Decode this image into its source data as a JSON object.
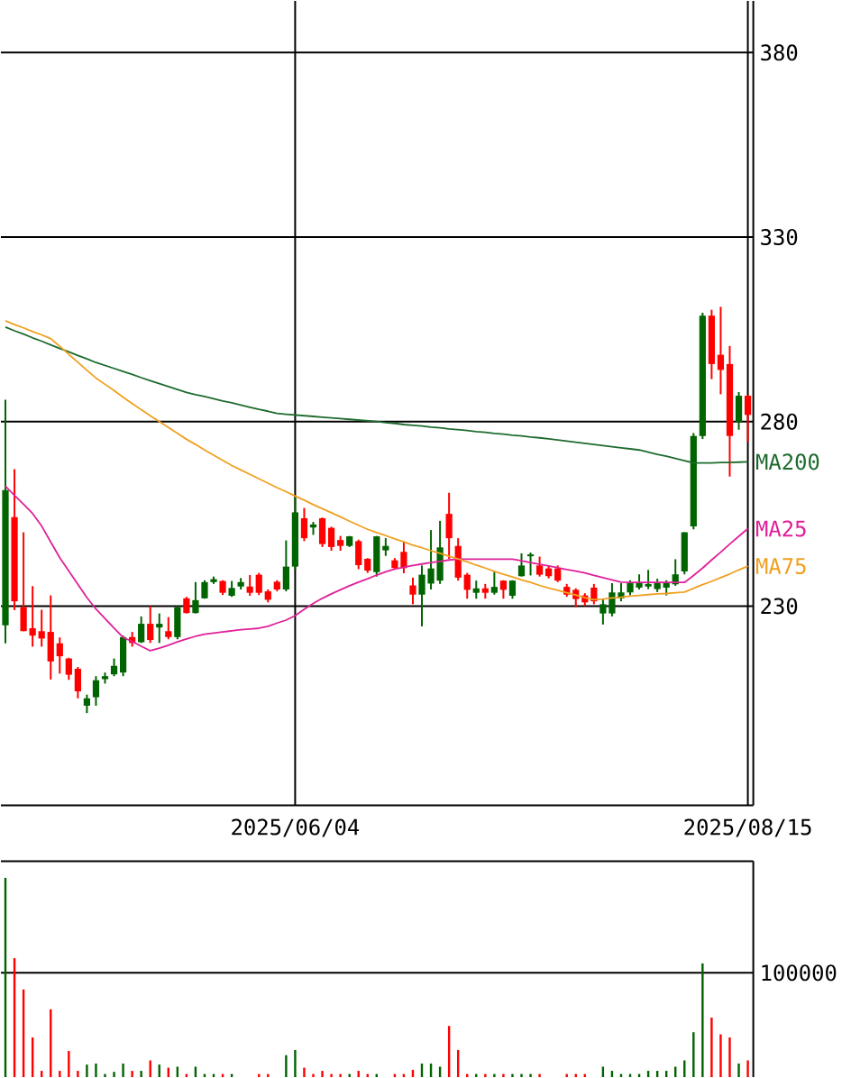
{
  "chart_data": [
    {
      "type": "candlestick",
      "categories": [
        null,
        null,
        null,
        null,
        null,
        null,
        null,
        null,
        null,
        null,
        null,
        null,
        null,
        null,
        null,
        null,
        null,
        null,
        null,
        null,
        null,
        null,
        null,
        null,
        null,
        null,
        null,
        null,
        null,
        null,
        null,
        null,
        "2025/06/04",
        null,
        null,
        null,
        null,
        null,
        null,
        null,
        null,
        null,
        null,
        null,
        null,
        null,
        null,
        null,
        null,
        null,
        null,
        null,
        null,
        null,
        null,
        null,
        null,
        null,
        null,
        null,
        null,
        null,
        null,
        null,
        null,
        null,
        null,
        null,
        null,
        null,
        null,
        null,
        null,
        null,
        null,
        null,
        null,
        null,
        null,
        null,
        null,
        null,
        "2025/08/15"
      ],
      "series": [
        {
          "type": "candlestick",
          "ohlc": [
            [
              224.8,
              285.9,
              219.9,
              261.4
            ],
            [
              254.1,
              267.1,
              228.9,
              231.3
            ],
            [
              229.7,
              250.0,
              223.2,
              223.2
            ],
            [
              224.0,
              235.4,
              219.0,
              222.0
            ],
            [
              223.2,
              229.0,
              219.0,
              221.2
            ],
            [
              223.0,
              232.9,
              210.1,
              215.0
            ],
            [
              219.9,
              221.5,
              211.7,
              216.4
            ],
            [
              215.8,
              216.0,
              210.0,
              211.4
            ],
            [
              213.0,
              213.5,
              205.0,
              206.9
            ],
            [
              203.0,
              206.0,
              201.0,
              205.0
            ],
            [
              205.3,
              211.0,
              203.0,
              209.9
            ],
            [
              210.2,
              212.0,
              209.0,
              211.0
            ],
            [
              211.5,
              215.8,
              211.0,
              213.8
            ],
            [
              212.0,
              222.0,
              211.0,
              221.6
            ],
            [
              221.6,
              223.0,
              219.0,
              220.0
            ],
            [
              220.2,
              227.2,
              220.0,
              225.2
            ],
            [
              225.2,
              230.0,
              220.0,
              220.8
            ],
            [
              224.2,
              228.0,
              220.0,
              225.2
            ],
            [
              223.2,
              227.0,
              221.0,
              221.6
            ],
            [
              221.6,
              230.0,
              221.0,
              229.7
            ],
            [
              232.1,
              232.5,
              228.0,
              228.1
            ],
            [
              228.1,
              236.5,
              228.0,
              231.6
            ],
            [
              232.1,
              237.0,
              232.0,
              236.5
            ],
            [
              236.5,
              238.0,
              236.0,
              237.3
            ],
            [
              236.8,
              237.0,
              233.0,
              233.6
            ],
            [
              232.8,
              236.8,
              232.5,
              234.9
            ],
            [
              235.3,
              237.6,
              234.5,
              236.5
            ],
            [
              235.3,
              238.4,
              232.8,
              233.6
            ],
            [
              238.5,
              239.0,
              233.0,
              233.6
            ],
            [
              234.0,
              234.5,
              231.0,
              231.7
            ],
            [
              236.6,
              237.0,
              234.0,
              234.5
            ],
            [
              234.5,
              247.8,
              234.0,
              240.7
            ],
            [
              240.7,
              259.8,
              240.0,
              255.4
            ],
            [
              253.8,
              256.6,
              247.6,
              248.4
            ],
            [
              251.3,
              252.8,
              249.3,
              252.1
            ],
            [
              253.8,
              254.0,
              246.0,
              246.8
            ],
            [
              251.2,
              251.5,
              245.0,
              246.0
            ],
            [
              247.9,
              249.0,
              245.0,
              246.3
            ],
            [
              246.3,
              249.0,
              246.0,
              248.9
            ],
            [
              247.6,
              248.0,
              240.0,
              241.1
            ],
            [
              242.8,
              243.0,
              239.0,
              239.6
            ],
            [
              239.2,
              249.0,
              238.0,
              248.9
            ],
            [
              245.1,
              248.4,
              243.6,
              246.3
            ],
            [
              242.4,
              243.0,
              240.0,
              240.3
            ],
            [
              244.7,
              247.5,
              238.9,
              240.3
            ],
            [
              235.6,
              237.7,
              230.5,
              233.1
            ],
            [
              233.1,
              241.0,
              224.5,
              238.5
            ],
            [
              236.1,
              250.6,
              234.5,
              240.2
            ],
            [
              236.9,
              253.1,
              236.0,
              245.9
            ],
            [
              255.0,
              260.7,
              242.8,
              248.4
            ],
            [
              246.3,
              248.4,
              236.9,
              237.7
            ],
            [
              238.5,
              239.0,
              232.0,
              234.4
            ],
            [
              233.6,
              236.9,
              232.0,
              234.8
            ],
            [
              234.8,
              236.0,
              232.0,
              233.6
            ],
            [
              233.6,
              239.3,
              233.1,
              235.2
            ],
            [
              236.9,
              237.0,
              232.0,
              234.4
            ],
            [
              232.8,
              237.0,
              232.0,
              236.9
            ],
            [
              238.1,
              244.3,
              238.0,
              241.0
            ],
            [
              243.5,
              244.5,
              238.3,
              244.0
            ],
            [
              241.0,
              243.4,
              238.0,
              238.5
            ],
            [
              240.2,
              241.0,
              237.5,
              238.1
            ],
            [
              240.2,
              241.0,
              236.5,
              236.9
            ],
            [
              235.2,
              236.0,
              232.5,
              233.1
            ],
            [
              234.4,
              234.8,
              229.7,
              231.9
            ],
            [
              232.9,
              233.5,
              230.0,
              231.0
            ],
            [
              235.0,
              236.0,
              230.5,
              231.3
            ],
            [
              228.0,
              232.0,
              225.0,
              230.5
            ],
            [
              228.0,
              236.2,
              227.2,
              233.7
            ],
            [
              232.1,
              236.2,
              231.3,
              233.7
            ],
            [
              233.7,
              237.0,
              232.9,
              236.2
            ],
            [
              235.0,
              238.6,
              234.5,
              236.2
            ],
            [
              235.3,
              239.8,
              234.6,
              236.0
            ],
            [
              234.6,
              237.4,
              233.8,
              236.2
            ],
            [
              235.0,
              237.0,
              232.9,
              236.2
            ],
            [
              235.9,
              242.7,
              235.5,
              238.6
            ],
            [
              239.4,
              250.0,
              238.6,
              250.0
            ],
            [
              251.6,
              276.9,
              250.8,
              276.1
            ],
            [
              276.1,
              309.5,
              275.3,
              308.7
            ],
            [
              308.7,
              310.3,
              291.5,
              295.6
            ],
            [
              298.1,
              311.1,
              287.4,
              294.0
            ],
            [
              295.6,
              300.5,
              265.1,
              276.1
            ],
            [
              279.9,
              288.0,
              277.8,
              287.0
            ],
            [
              287.0,
              287.2,
              274.5,
              281.8
            ]
          ],
          "colors": [
            "#006400",
            "#ff0000",
            "#ff0000",
            "#ff0000",
            "#ff0000",
            "#ff0000",
            "#ff0000",
            "#ff0000",
            "#ff0000",
            "#006400",
            "#006400",
            "#006400",
            "#006400",
            "#006400",
            "#ff0000",
            "#006400",
            "#ff0000",
            "#006400",
            "#ff0000",
            "#006400",
            "#ff0000",
            "#006400",
            "#006400",
            "#006400",
            "#ff0000",
            "#006400",
            "#006400",
            "#ff0000",
            "#ff0000",
            "#ff0000",
            "#ff0000",
            "#006400",
            "#006400",
            "#ff0000",
            "#006400",
            "#ff0000",
            "#ff0000",
            "#ff0000",
            "#006400",
            "#ff0000",
            "#ff0000",
            "#006400",
            "#006400",
            "#ff0000",
            "#ff0000",
            "#ff0000",
            "#006400",
            "#006400",
            "#006400",
            "#ff0000",
            "#ff0000",
            "#ff0000",
            "#006400",
            "#ff0000",
            "#006400",
            "#ff0000",
            "#006400",
            "#006400",
            "#006400",
            "#ff0000",
            "#ff0000",
            "#ff0000",
            "#ff0000",
            "#ff0000",
            "#ff0000",
            "#ff0000",
            "#006400",
            "#006400",
            "#006400",
            "#006400",
            "#006400",
            "#006400",
            "#006400",
            "#006400",
            "#006400",
            "#006400",
            "#006400",
            "#006400",
            "#ff0000",
            "#ff0000",
            "#ff0000",
            "#006400",
            "#ff0000"
          ]
        },
        {
          "type": "line",
          "name": "MA200",
          "color": "#1e6b2e",
          "values": [
            305.6,
            304.6,
            303.7,
            302.7,
            301.8,
            300.8,
            299.8,
            298.9,
            297.9,
            297.0,
            296.0,
            295.2,
            294.4,
            293.6,
            292.8,
            291.9,
            291.1,
            290.3,
            289.5,
            288.7,
            287.9,
            287.3,
            286.8,
            286.2,
            285.6,
            285.1,
            284.5,
            283.9,
            283.3,
            282.8,
            282.2,
            282.0,
            281.8,
            281.6,
            281.4,
            281.2,
            281.0,
            280.8,
            280.6,
            280.4,
            280.2,
            280.0,
            279.7,
            279.5,
            279.2,
            279.0,
            278.8,
            278.5,
            278.3,
            278.0,
            277.8,
            277.6,
            277.3,
            277.1,
            276.8,
            276.6,
            276.3,
            276.1,
            275.8,
            275.6,
            275.3,
            275.0,
            274.7,
            274.4,
            274.1,
            273.8,
            273.5,
            273.2,
            272.9,
            272.6,
            272.3,
            271.7,
            271.1,
            270.6,
            270.0,
            269.4,
            268.8,
            268.8,
            268.8,
            268.9,
            268.9,
            269.0,
            269.1
          ]
        },
        {
          "type": "line",
          "name": "MA25",
          "color": "#e0209a",
          "values": [
            262.5,
            260.0,
            257.6,
            255.1,
            251.7,
            247.4,
            243.1,
            239.5,
            235.9,
            232.3,
            229.2,
            226.6,
            224.0,
            221.5,
            220.4,
            219.1,
            217.9,
            218.6,
            219.4,
            220.3,
            221.1,
            221.8,
            222.4,
            222.7,
            223.0,
            223.3,
            223.6,
            223.8,
            224.0,
            224.5,
            225.4,
            226.2,
            227.4,
            229.1,
            230.7,
            232.1,
            233.3,
            234.4,
            235.5,
            236.5,
            237.4,
            238.4,
            239.3,
            240.0,
            240.5,
            241.0,
            241.4,
            241.8,
            242.1,
            242.5,
            242.7,
            242.7,
            242.7,
            242.7,
            242.7,
            242.7,
            242.7,
            242.3,
            241.8,
            241.3,
            240.9,
            240.4,
            239.9,
            239.5,
            239.0,
            238.3,
            237.7,
            237.1,
            236.5,
            236.4,
            236.4,
            236.4,
            236.4,
            236.4,
            236.4,
            236.4,
            238.3,
            240.3,
            242.5,
            244.6,
            246.8,
            248.9,
            251.0
          ]
        },
        {
          "type": "line",
          "name": "MA75",
          "color": "#f0a020",
          "values": [
            307.3,
            306.3,
            305.4,
            304.4,
            303.5,
            302.5,
            300.4,
            298.2,
            296.1,
            293.9,
            291.8,
            290.1,
            288.4,
            286.6,
            284.9,
            283.2,
            281.6,
            280.0,
            278.4,
            276.8,
            275.2,
            273.8,
            272.3,
            270.9,
            269.5,
            268.1,
            266.9,
            265.7,
            264.5,
            263.3,
            262.1,
            261.0,
            259.8,
            258.7,
            257.5,
            256.4,
            255.3,
            254.2,
            253.0,
            251.9,
            250.8,
            249.9,
            249.1,
            248.2,
            247.4,
            246.5,
            245.8,
            245.0,
            244.3,
            243.5,
            242.8,
            242.0,
            241.1,
            240.3,
            239.4,
            238.6,
            237.9,
            237.1,
            236.4,
            235.6,
            234.9,
            234.3,
            233.6,
            233.0,
            232.3,
            231.7,
            231.9,
            232.2,
            232.4,
            232.7,
            232.9,
            233.1,
            233.3,
            233.4,
            233.6,
            233.8,
            234.8,
            235.8,
            236.7,
            237.7,
            238.7,
            239.8,
            240.8
          ]
        }
      ],
      "ylim": [
        176,
        394
      ],
      "yticks": [
        230,
        280,
        330,
        380
      ],
      "grid": true
    },
    {
      "type": "bar",
      "ylim": [
        0,
        207000
      ],
      "yticks": [
        100000
      ],
      "grid": "y",
      "categories": [
        null,
        null,
        null,
        null,
        null,
        null,
        null,
        null,
        null,
        null,
        null,
        null,
        null,
        null,
        null,
        null,
        null,
        null,
        null,
        null,
        null,
        null,
        null,
        null,
        null,
        null,
        null,
        null,
        null,
        null,
        null,
        null,
        null,
        null,
        null,
        null,
        null,
        null,
        null,
        null,
        null,
        null,
        null,
        null,
        null,
        null,
        null,
        null,
        null,
        null,
        null,
        null,
        null,
        null,
        null,
        null,
        null,
        null,
        null,
        null,
        null,
        null,
        null,
        null,
        null,
        null,
        null,
        null,
        null,
        null,
        null,
        null,
        null,
        null,
        null,
        null,
        null,
        null,
        null,
        null,
        null,
        null,
        null
      ],
      "values": [
        191000,
        114000,
        84000,
        38000,
        6000,
        65000,
        6000,
        25000,
        6000,
        12000,
        13000,
        3000,
        5000,
        13000,
        6000,
        6000,
        16000,
        12000,
        9000,
        10000,
        3000,
        10000,
        3000,
        3000,
        3000,
        3000,
        0,
        0,
        3000,
        3000,
        0,
        21000,
        26000,
        9000,
        3000,
        6000,
        3000,
        3000,
        3000,
        6000,
        3000,
        3000,
        0,
        3000,
        3000,
        7000,
        13000,
        13000,
        10000,
        49000,
        26000,
        3000,
        3000,
        3000,
        3000,
        3000,
        3000,
        3000,
        3000,
        3000,
        0,
        0,
        3000,
        3000,
        3000,
        0,
        10000,
        6000,
        3000,
        3000,
        3000,
        6000,
        6000,
        6000,
        10000,
        16000,
        43000,
        109000,
        57000,
        41000,
        38000,
        13000,
        16000
      ],
      "colors": [
        "#006400",
        "#ff0000",
        "#ff0000",
        "#ff0000",
        "#ff0000",
        "#ff0000",
        "#ff0000",
        "#ff0000",
        "#ff0000",
        "#006400",
        "#006400",
        "#006400",
        "#006400",
        "#006400",
        "#ff0000",
        "#006400",
        "#ff0000",
        "#006400",
        "#ff0000",
        "#006400",
        "#ff0000",
        "#006400",
        "#006400",
        "#006400",
        "#ff0000",
        "#006400",
        "#006400",
        "#ff0000",
        "#ff0000",
        "#ff0000",
        "#ff0000",
        "#006400",
        "#006400",
        "#ff0000",
        "#ff0000",
        "#ff0000",
        "#ff0000",
        "#ff0000",
        "#006400",
        "#ff0000",
        "#ff0000",
        "#006400",
        "#006400",
        "#ff0000",
        "#ff0000",
        "#ff0000",
        "#006400",
        "#006400",
        "#006400",
        "#ff0000",
        "#ff0000",
        "#ff0000",
        "#006400",
        "#ff0000",
        "#006400",
        "#ff0000",
        "#006400",
        "#006400",
        "#006400",
        "#ff0000",
        "#ff0000",
        "#ff0000",
        "#ff0000",
        "#ff0000",
        "#ff0000",
        "#ff0000",
        "#006400",
        "#006400",
        "#006400",
        "#006400",
        "#006400",
        "#006400",
        "#006400",
        "#006400",
        "#006400",
        "#006400",
        "#006400",
        "#006400",
        "#ff0000",
        "#ff0000",
        "#ff0000",
        "#006400",
        "#ff0000"
      ]
    }
  ]
}
